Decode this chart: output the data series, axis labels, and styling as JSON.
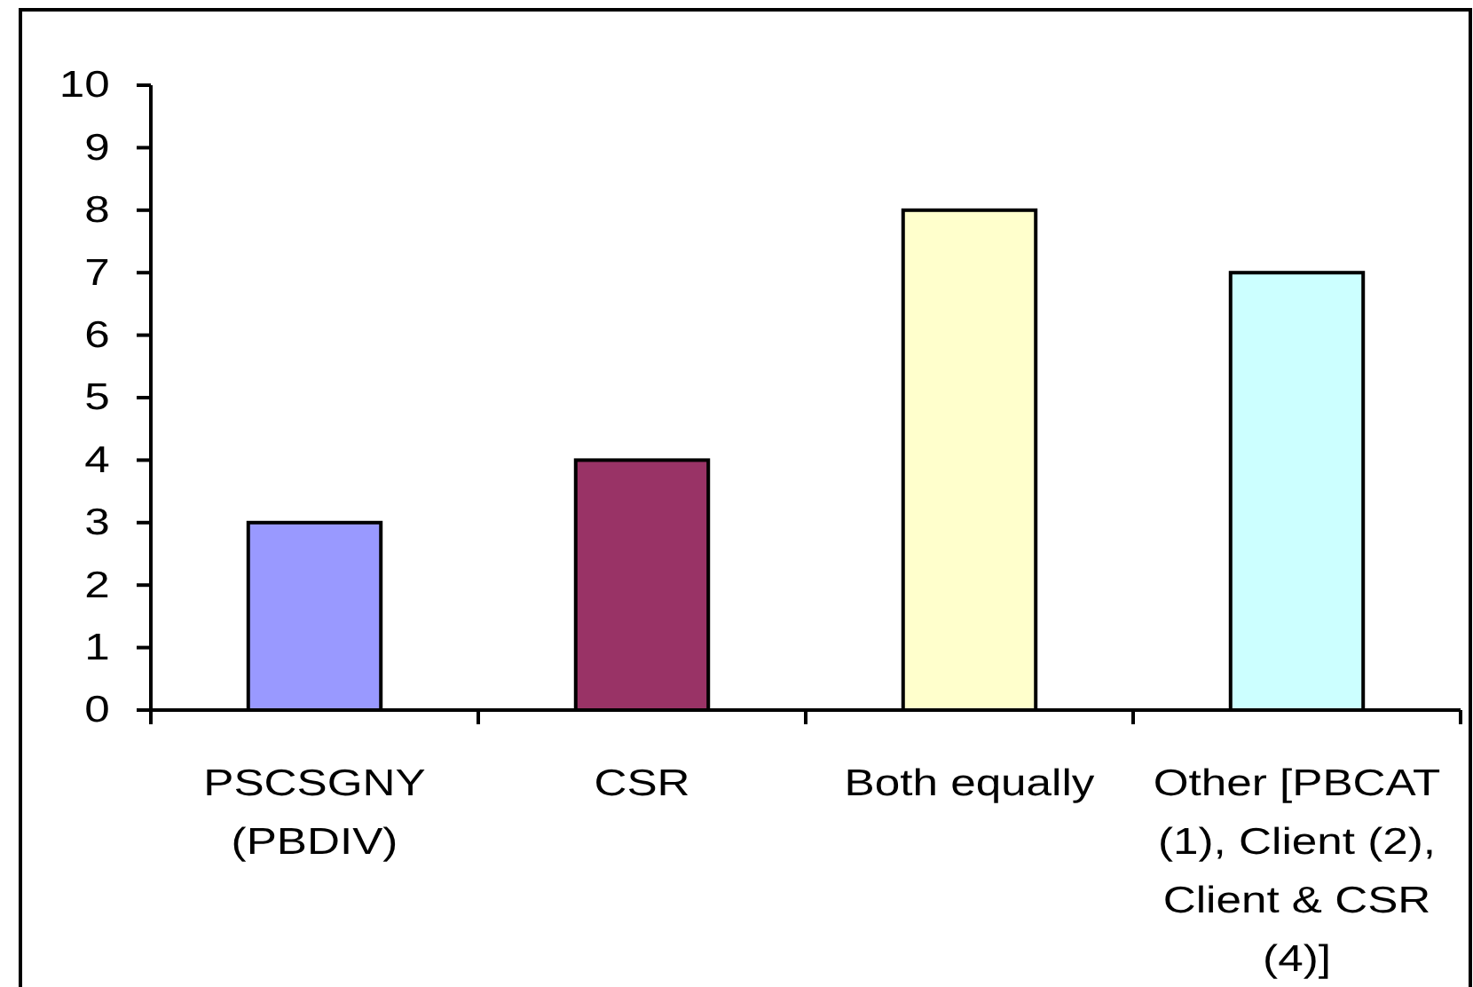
{
  "chart_data": {
    "type": "bar",
    "categories": [
      "PSCSGNY (PBDIV)",
      "CSR",
      "Both equally",
      "Other [PBCAT (1), Client (2), Client & CSR (4)]"
    ],
    "values": [
      3,
      4,
      8,
      7
    ],
    "colors": [
      "#9999ff",
      "#993366",
      "#ffffcc",
      "#ccffff"
    ],
    "ylim": [
      0,
      10
    ],
    "yticks": [
      0,
      1,
      2,
      3,
      4,
      5,
      6,
      7,
      8,
      9,
      10
    ]
  }
}
